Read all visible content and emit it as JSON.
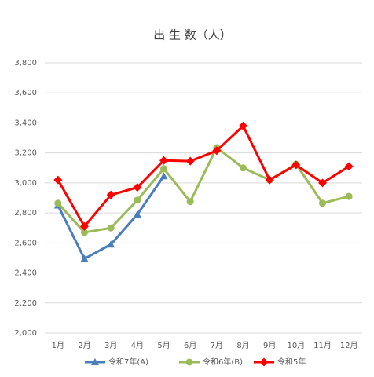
{
  "chart_data": {
    "type": "line",
    "title": "出 生 数（人）",
    "categories": [
      "1月",
      "2月",
      "3月",
      "4月",
      "5月",
      "6月",
      "7月",
      "8月",
      "9月",
      "10月",
      "11月",
      "12月"
    ],
    "ylim": [
      2000,
      3800
    ],
    "yticks": [
      {
        "value": 2000,
        "label": "2,000"
      },
      {
        "value": 2200,
        "label": "2,200"
      },
      {
        "value": 2400,
        "label": "2,400"
      },
      {
        "value": 2600,
        "label": "2,600"
      },
      {
        "value": 2800,
        "label": "2,800"
      },
      {
        "value": 3000,
        "label": "3,000"
      },
      {
        "value": 3200,
        "label": "3,200"
      },
      {
        "value": 3400,
        "label": "3,400"
      },
      {
        "value": 3600,
        "label": "3,600"
      },
      {
        "value": 3800,
        "label": "3,800"
      }
    ],
    "grid": true,
    "legend": "bottom",
    "series": [
      {
        "name": "令和7年(A)",
        "color": "#4a7ebb",
        "marker": "triangle",
        "values": [
          2850,
          2495,
          2590,
          2790,
          3045,
          null,
          null,
          null,
          null,
          null,
          null,
          null
        ]
      },
      {
        "name": "令和6年(B)",
        "color": "#9bbb59",
        "marker": "circle",
        "values": [
          2865,
          2670,
          2700,
          2885,
          3095,
          2875,
          3235,
          3100,
          3020,
          3125,
          2865,
          2910
        ]
      },
      {
        "name": "令和5年",
        "color": "#ff0000",
        "marker": "diamond",
        "values": [
          3020,
          2710,
          2920,
          2970,
          3150,
          3145,
          3215,
          3380,
          3020,
          3120,
          3000,
          3110
        ]
      }
    ]
  }
}
